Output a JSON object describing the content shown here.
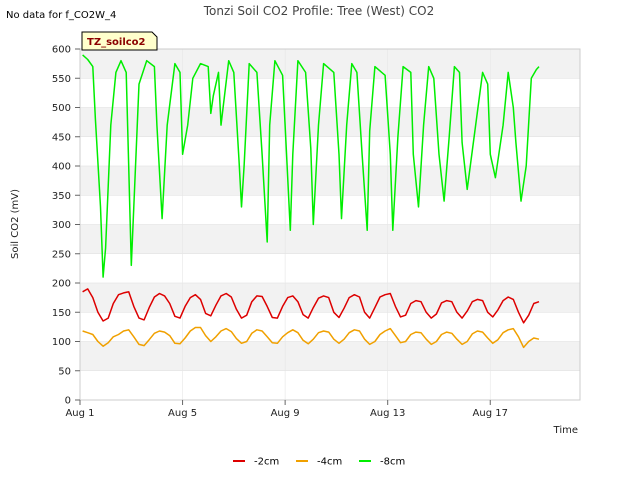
{
  "no_data_note": "No data for f_CO2W_4",
  "badge_label": "TZ_soilco2",
  "chart_data": {
    "type": "line",
    "title": "Tonzi Soil CO2 Profile: Tree (West) CO2",
    "xlabel": "Time",
    "ylabel": "Soil CO2 (mV)",
    "xlim": [
      0.0,
      19.5
    ],
    "ylim": [
      0,
      600
    ],
    "yticks": [
      0,
      50,
      100,
      150,
      200,
      250,
      300,
      350,
      400,
      450,
      500,
      550,
      600
    ],
    "xticks": [
      {
        "value": 0.0,
        "label": "Aug 1"
      },
      {
        "value": 4.0,
        "label": "Aug 5"
      },
      {
        "value": 8.0,
        "label": "Aug 9"
      },
      {
        "value": 12.0,
        "label": "Aug 13"
      },
      {
        "value": 16.0,
        "label": "Aug 17"
      }
    ],
    "background_bands": "alternating grey/white every 50 units",
    "legend_position": "bottom-center",
    "series": [
      {
        "name": "-2cm",
        "color": "#dd0000",
        "x": [
          0.1,
          0.3,
          0.5,
          0.7,
          0.9,
          1.1,
          1.3,
          1.5,
          1.7,
          1.9,
          2.1,
          2.3,
          2.5,
          2.7,
          2.9,
          3.1,
          3.3,
          3.5,
          3.7,
          3.9,
          4.1,
          4.3,
          4.5,
          4.7,
          4.9,
          5.1,
          5.3,
          5.5,
          5.7,
          5.9,
          6.1,
          6.3,
          6.5,
          6.7,
          6.9,
          7.1,
          7.3,
          7.5,
          7.7,
          7.9,
          8.1,
          8.3,
          8.5,
          8.7,
          8.9,
          9.1,
          9.3,
          9.5,
          9.7,
          9.9,
          10.1,
          10.3,
          10.5,
          10.7,
          10.9,
          11.1,
          11.3,
          11.5,
          11.7,
          11.9,
          12.1,
          12.3,
          12.5,
          12.7,
          12.9,
          13.1,
          13.3,
          13.5,
          13.7,
          13.9,
          14.1,
          14.3,
          14.5,
          14.7,
          14.9,
          15.1,
          15.3,
          15.5,
          15.7,
          15.9,
          16.1,
          16.3,
          16.5,
          16.7,
          16.9,
          17.1,
          17.3,
          17.5,
          17.7,
          17.9
        ],
        "values": [
          185,
          190,
          175,
          150,
          135,
          140,
          165,
          180,
          183,
          185,
          160,
          140,
          137,
          158,
          176,
          182,
          178,
          165,
          143,
          140,
          160,
          175,
          180,
          172,
          148,
          144,
          162,
          178,
          182,
          176,
          155,
          140,
          145,
          168,
          178,
          177,
          160,
          141,
          140,
          160,
          175,
          178,
          168,
          146,
          140,
          158,
          174,
          178,
          175,
          150,
          141,
          157,
          175,
          180,
          176,
          150,
          140,
          158,
          176,
          180,
          182,
          160,
          142,
          145,
          165,
          170,
          168,
          150,
          140,
          147,
          166,
          170,
          168,
          150,
          140,
          152,
          168,
          172,
          170,
          150,
          142,
          154,
          170,
          176,
          172,
          150,
          132,
          145,
          165,
          168
        ]
      },
      {
        "name": "-4cm",
        "color": "#f0a000",
        "x": [
          0.1,
          0.3,
          0.5,
          0.7,
          0.9,
          1.1,
          1.3,
          1.5,
          1.7,
          1.9,
          2.1,
          2.3,
          2.5,
          2.7,
          2.9,
          3.1,
          3.3,
          3.5,
          3.7,
          3.9,
          4.1,
          4.3,
          4.5,
          4.7,
          4.9,
          5.1,
          5.3,
          5.5,
          5.7,
          5.9,
          6.1,
          6.3,
          6.5,
          6.7,
          6.9,
          7.1,
          7.3,
          7.5,
          7.7,
          7.9,
          8.1,
          8.3,
          8.5,
          8.7,
          8.9,
          9.1,
          9.3,
          9.5,
          9.7,
          9.9,
          10.1,
          10.3,
          10.5,
          10.7,
          10.9,
          11.1,
          11.3,
          11.5,
          11.7,
          11.9,
          12.1,
          12.3,
          12.5,
          12.7,
          12.9,
          13.1,
          13.3,
          13.5,
          13.7,
          13.9,
          14.1,
          14.3,
          14.5,
          14.7,
          14.9,
          15.1,
          15.3,
          15.5,
          15.7,
          15.9,
          16.1,
          16.3,
          16.5,
          16.7,
          16.9,
          17.1,
          17.3,
          17.5,
          17.7,
          17.9
        ],
        "values": [
          118,
          115,
          112,
          100,
          92,
          98,
          108,
          112,
          118,
          120,
          108,
          95,
          93,
          103,
          114,
          118,
          116,
          110,
          97,
          96,
          106,
          118,
          124,
          124,
          110,
          100,
          108,
          118,
          122,
          117,
          105,
          97,
          100,
          114,
          120,
          118,
          108,
          98,
          97,
          108,
          115,
          120,
          115,
          102,
          96,
          104,
          115,
          118,
          116,
          104,
          97,
          104,
          115,
          120,
          118,
          104,
          95,
          100,
          112,
          118,
          122,
          110,
          98,
          100,
          112,
          116,
          115,
          104,
          95,
          100,
          112,
          116,
          114,
          104,
          95,
          100,
          113,
          118,
          116,
          106,
          97,
          103,
          115,
          120,
          122,
          108,
          90,
          100,
          106,
          104
        ]
      },
      {
        "name": "-8cm",
        "color": "#00ee00",
        "x": [
          0.1,
          0.3,
          0.5,
          0.6,
          0.8,
          0.9,
          1.0,
          1.2,
          1.4,
          1.6,
          1.8,
          1.9,
          2.0,
          2.1,
          2.3,
          2.6,
          2.9,
          3.0,
          3.2,
          3.4,
          3.7,
          3.9,
          4.0,
          4.2,
          4.4,
          4.7,
          5.0,
          5.1,
          5.2,
          5.4,
          5.5,
          5.8,
          6.0,
          6.2,
          6.3,
          6.4,
          6.6,
          6.9,
          7.1,
          7.3,
          7.4,
          7.6,
          7.9,
          8.0,
          8.2,
          8.3,
          8.5,
          8.8,
          9.0,
          9.1,
          9.3,
          9.5,
          9.9,
          10.1,
          10.2,
          10.4,
          10.6,
          10.8,
          11.0,
          11.2,
          11.3,
          11.5,
          11.9,
          12.1,
          12.2,
          12.4,
          12.6,
          12.9,
          13.0,
          13.2,
          13.4,
          13.6,
          13.8,
          14.0,
          14.2,
          14.4,
          14.6,
          14.8,
          14.9,
          15.1,
          15.4,
          15.7,
          15.9,
          16.0,
          16.2,
          16.5,
          16.7,
          16.9,
          17.0,
          17.2,
          17.4,
          17.6,
          17.8,
          17.9
        ],
        "values": [
          590,
          582,
          570,
          480,
          330,
          210,
          260,
          470,
          560,
          580,
          560,
          400,
          230,
          330,
          540,
          580,
          570,
          470,
          310,
          470,
          575,
          560,
          420,
          470,
          550,
          575,
          570,
          490,
          520,
          560,
          470,
          580,
          560,
          410,
          330,
          400,
          575,
          560,
          420,
          270,
          470,
          580,
          555,
          470,
          290,
          420,
          580,
          560,
          430,
          300,
          470,
          575,
          560,
          420,
          310,
          470,
          575,
          560,
          420,
          290,
          460,
          570,
          555,
          420,
          290,
          450,
          570,
          560,
          420,
          330,
          470,
          570,
          550,
          420,
          340,
          450,
          570,
          560,
          440,
          360,
          460,
          560,
          540,
          420,
          380,
          470,
          560,
          500,
          440,
          340,
          400,
          550,
          565,
          570
        ]
      }
    ]
  }
}
